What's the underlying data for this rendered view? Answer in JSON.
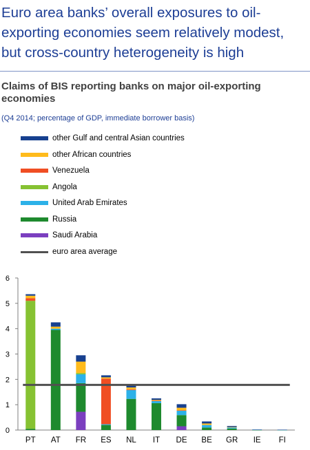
{
  "headline": [
    "Euro area banks’ overall exposures to oil-",
    "exporting economies seem relatively modest,",
    "but cross-country heterogeneity is high"
  ],
  "chart_data": {
    "type": "bar",
    "stacked": true,
    "title": "Claims of BIS reporting banks on major oil-exporting economies",
    "subtitle": "(Q4 2014; percentage of GDP, immediate borrower basis)",
    "categories": [
      "PT",
      "AT",
      "FR",
      "ES",
      "NL",
      "IT",
      "DE",
      "BE",
      "GR",
      "IE",
      "FI"
    ],
    "ylim": [
      0,
      6
    ],
    "yticks": [
      0,
      1,
      2,
      3,
      4,
      5,
      6
    ],
    "grid": false,
    "legend_position": "top",
    "series": [
      {
        "name": "Saudi Arabia",
        "color": "#7b3fbf",
        "values": [
          0,
          0,
          0.72,
          0,
          0,
          0,
          0.15,
          0,
          0,
          0,
          0
        ]
      },
      {
        "name": "Russia",
        "color": "#1e8a2e",
        "values": [
          0.05,
          3.95,
          1.13,
          0.2,
          1.23,
          1.06,
          0.44,
          0.1,
          0.06,
          0.005,
          0.005
        ]
      },
      {
        "name": "United Arab Emirates",
        "color": "#2cb1e8",
        "values": [
          0,
          0.05,
          0.35,
          0.03,
          0.35,
          0.08,
          0.17,
          0.1,
          0.04,
          0.01,
          0.005
        ]
      },
      {
        "name": "Angola",
        "color": "#86c232",
        "values": [
          5.05,
          0,
          0.05,
          0,
          0,
          0,
          0,
          0,
          0,
          0,
          0
        ]
      },
      {
        "name": "Venezuela",
        "color": "#f04e23",
        "values": [
          0.1,
          0,
          0,
          1.8,
          0.03,
          0.02,
          0.02,
          0,
          0,
          0,
          0
        ]
      },
      {
        "name": "other African countries",
        "color": "#ffbb1c",
        "values": [
          0.1,
          0.08,
          0.45,
          0.05,
          0.07,
          0.03,
          0.1,
          0.06,
          0.02,
          0,
          0
        ]
      },
      {
        "name": "other Gulf and central Asian countries",
        "color": "#17408f",
        "values": [
          0.06,
          0.17,
          0.25,
          0.08,
          0.07,
          0.06,
          0.14,
          0.08,
          0.04,
          0.005,
          0.005
        ]
      }
    ],
    "reference_line": {
      "name": "euro area average",
      "value": 1.78,
      "color": "#505050"
    },
    "legend_order": [
      "other Gulf and central Asian countries",
      "other African countries",
      "Venezuela",
      "Angola",
      "United Arab Emirates",
      "Russia",
      "Saudi Arabia",
      "euro area average"
    ]
  }
}
